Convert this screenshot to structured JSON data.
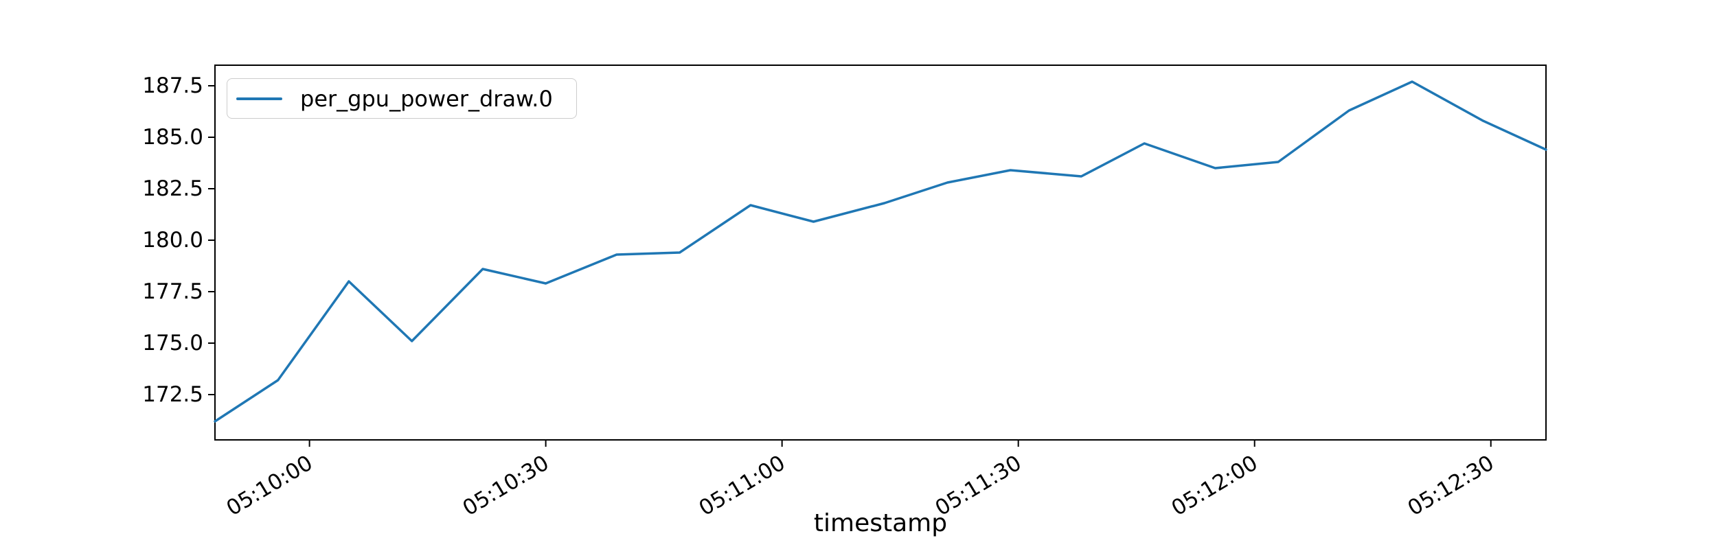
{
  "figure": {
    "background": "#ffffff",
    "axis_color": "#000000",
    "tick_color": "#000000"
  },
  "chart_data": {
    "type": "line",
    "title": "",
    "xlabel": "timestamp",
    "ylabel": "",
    "grid": false,
    "legend_position": "upper left",
    "ylim": [
      170.3,
      188.5
    ],
    "y_ticks": [
      172.5,
      175.0,
      177.5,
      180.0,
      182.5,
      185.0,
      187.5
    ],
    "x_tick_labels": [
      "05:10:00",
      "05:10:30",
      "05:11:00",
      "05:11:30",
      "05:12:00",
      "05:12:30"
    ],
    "series": [
      {
        "name": "per_gpu_power_draw.0",
        "color": "#1f77b4",
        "x": [
          "05:09:48",
          "05:09:56",
          "05:10:05",
          "05:10:13",
          "05:10:22",
          "05:10:30",
          "05:10:39",
          "05:10:47",
          "05:10:56",
          "05:11:04",
          "05:11:13",
          "05:11:21",
          "05:11:29",
          "05:11:38",
          "05:11:46",
          "05:11:55",
          "05:12:03",
          "05:12:12",
          "05:12:20",
          "05:12:29",
          "05:12:37"
        ],
        "values": [
          171.2,
          173.2,
          178.0,
          175.1,
          178.6,
          177.9,
          179.3,
          179.4,
          181.7,
          180.9,
          181.8,
          182.8,
          183.4,
          183.1,
          184.7,
          183.5,
          183.8,
          186.3,
          187.7,
          185.8,
          184.4
        ]
      }
    ]
  }
}
